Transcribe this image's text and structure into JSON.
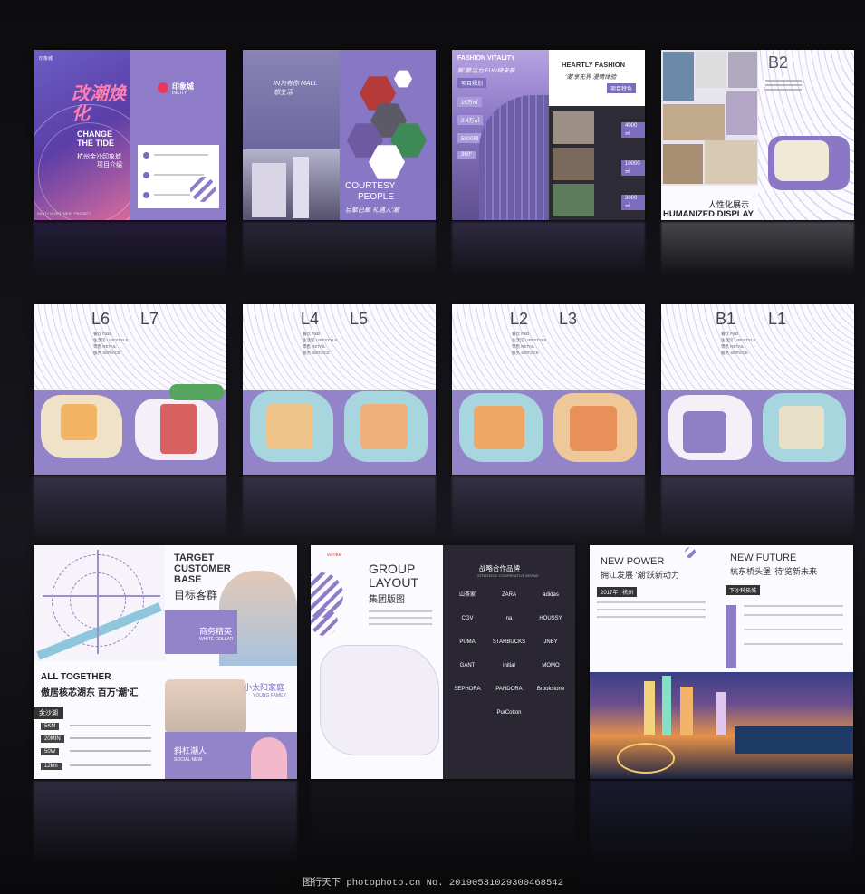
{
  "footer": {
    "text": "图行天下 photophoto.cn  No. 20190531029300468542"
  },
  "cover": {
    "logo": "印象城",
    "logo_en": "INCITY",
    "cn_title": "改潮焕化",
    "en_title_1": "CHANGE",
    "en_title_2": "THE TIDE",
    "subtitle": "杭州金沙印象城",
    "subtitle2": "项目介绍",
    "project": "INCITY INVESTMENT PROJECT"
  },
  "mall": {
    "slogan": "IN为有你 MALL想生活",
    "courtesy": "COURTESY",
    "people": "PEOPLE",
    "people_cn": "巨擘已聚 礼遇人'潮'"
  },
  "vitality": {
    "title": "FASHION VITALITY",
    "cn": "新'潮'活力 FUN肆来袭",
    "tag": "项目规划",
    "stats": [
      "16万㎡",
      "2.4万㎡",
      "5800辆",
      "360°"
    ],
    "title2": "HEARTLY FASHION",
    "cn2": "'潮'享无界 漫情体验",
    "tag2": "项目特色",
    "stat2": [
      "4000㎡",
      "10000㎡",
      "3000㎡"
    ]
  },
  "b2": {
    "floor": "B2",
    "cn": "人性化展示",
    "en": "HUMANIZED DISPLAY"
  },
  "floors": [
    {
      "left": "L6",
      "right": "L7"
    },
    {
      "left": "L4",
      "right": "L5"
    },
    {
      "left": "L2",
      "right": "L3"
    },
    {
      "left": "B1",
      "right": "L1"
    }
  ],
  "floor_legend": [
    "餐饮 F&B",
    "生活馆 LIFESTYLE",
    "零售 RETAIL",
    "服务 SERVICE"
  ],
  "customer": {
    "title_1": "TARGET",
    "title_2": "CUSTOMER",
    "title_3": "BASE",
    "cn": "目标客群",
    "seg1": "商务精英",
    "seg1_en": "WHITE COLLAR",
    "seg2": "小太阳家庭",
    "seg2_en": "YOUNG FAMILY",
    "seg3": "斜杠潮人",
    "seg3_en": "SOCIAL NEW",
    "together": "ALL TOGETHER",
    "together_cn": "傲居核芯湖东 百万'潮'汇",
    "district": "金沙湖",
    "distances": [
      "5KM",
      "20MIN",
      "50W",
      "12km"
    ]
  },
  "group": {
    "logo": "vanke",
    "title_1": "GROUP",
    "title_2": "LAYOUT",
    "cn": "集团版图",
    "brands_title": "战略合作品牌",
    "brands_en": "STRATEGIC COOPERATIVE BRAND",
    "brands": [
      "山茶家",
      "ZARA",
      "adidas",
      "CGV",
      "na",
      "HOUSSY",
      "PUMA",
      "STARBUCKS",
      "JNBY",
      "GANT",
      "initial",
      "MOMO",
      "SEPHORA",
      "PANDORA",
      "Brookstone",
      "PurCotton"
    ]
  },
  "future": {
    "title_1": "NEW POWER",
    "cn_1": "拥江发展 '潮'跃新动力",
    "title_2": "NEW FUTURE",
    "cn_2": "杭东桥头堡 '待'览新未来",
    "tag_1": "2017年 | 杭州",
    "tag_2": "下沙科技城"
  }
}
